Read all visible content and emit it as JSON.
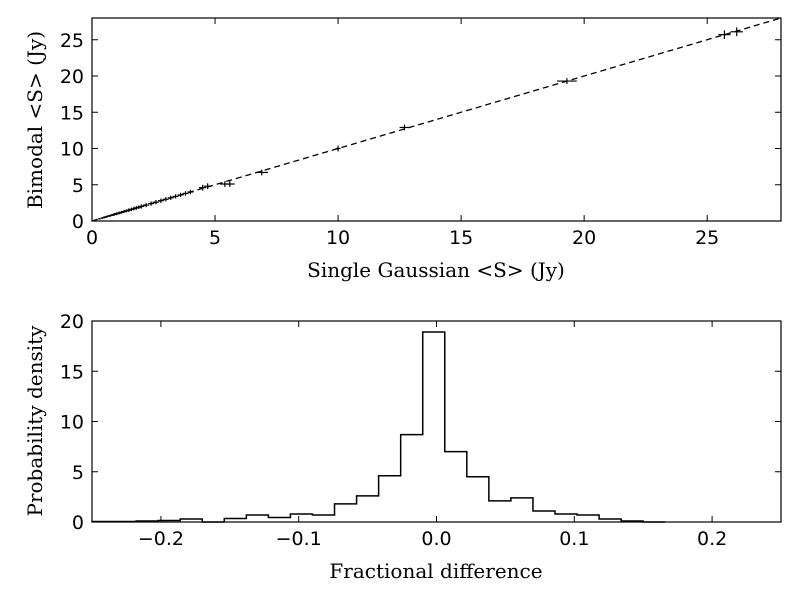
{
  "chart_data": [
    {
      "type": "scatter",
      "xlabel": "Single Gaussian <S> (Jy)",
      "ylabel": "Bimodal <S> (Jy)",
      "xlim": [
        0,
        28
      ],
      "ylim": [
        0,
        28
      ],
      "xticks": [
        "0",
        "5",
        "10",
        "15",
        "20",
        "25"
      ],
      "yticks": [
        "0",
        "5",
        "10",
        "15",
        "20",
        "25"
      ],
      "reference_line": {
        "style": "dashed",
        "x": [
          0,
          28
        ],
        "y": [
          0,
          28
        ]
      },
      "points": [
        {
          "x": 0.3,
          "y": 0.3,
          "xerr": 0.05,
          "yerr": 0.1
        },
        {
          "x": 0.4,
          "y": 0.4,
          "xerr": 0.05,
          "yerr": 0.1
        },
        {
          "x": 0.5,
          "y": 0.5,
          "xerr": 0.06,
          "yerr": 0.15
        },
        {
          "x": 0.6,
          "y": 0.6,
          "xerr": 0.06,
          "yerr": 0.15
        },
        {
          "x": 0.7,
          "y": 0.7,
          "xerr": 0.07,
          "yerr": 0.15
        },
        {
          "x": 0.8,
          "y": 0.8,
          "xerr": 0.07,
          "yerr": 0.15
        },
        {
          "x": 0.9,
          "y": 0.9,
          "xerr": 0.08,
          "yerr": 0.2
        },
        {
          "x": 1.0,
          "y": 1.0,
          "xerr": 0.08,
          "yerr": 0.2
        },
        {
          "x": 1.1,
          "y": 1.1,
          "xerr": 0.08,
          "yerr": 0.2
        },
        {
          "x": 1.2,
          "y": 1.2,
          "xerr": 0.09,
          "yerr": 0.2
        },
        {
          "x": 1.3,
          "y": 1.3,
          "xerr": 0.09,
          "yerr": 0.2
        },
        {
          "x": 1.4,
          "y": 1.4,
          "xerr": 0.1,
          "yerr": 0.2
        },
        {
          "x": 1.5,
          "y": 1.5,
          "xerr": 0.1,
          "yerr": 0.25
        },
        {
          "x": 1.6,
          "y": 1.6,
          "xerr": 0.1,
          "yerr": 0.25
        },
        {
          "x": 1.7,
          "y": 1.7,
          "xerr": 0.1,
          "yerr": 0.25
        },
        {
          "x": 1.8,
          "y": 1.8,
          "xerr": 0.1,
          "yerr": 0.25
        },
        {
          "x": 1.9,
          "y": 1.9,
          "xerr": 0.1,
          "yerr": 0.25
        },
        {
          "x": 2.0,
          "y": 2.0,
          "xerr": 0.12,
          "yerr": 0.3
        },
        {
          "x": 2.2,
          "y": 2.2,
          "xerr": 0.12,
          "yerr": 0.3
        },
        {
          "x": 2.4,
          "y": 2.4,
          "xerr": 0.12,
          "yerr": 0.3
        },
        {
          "x": 2.6,
          "y": 2.6,
          "xerr": 0.12,
          "yerr": 0.3
        },
        {
          "x": 2.8,
          "y": 2.8,
          "xerr": 0.12,
          "yerr": 0.3
        },
        {
          "x": 3.0,
          "y": 3.0,
          "xerr": 0.12,
          "yerr": 0.3
        },
        {
          "x": 3.2,
          "y": 3.2,
          "xerr": 0.12,
          "yerr": 0.3
        },
        {
          "x": 3.4,
          "y": 3.4,
          "xerr": 0.12,
          "yerr": 0.3
        },
        {
          "x": 3.6,
          "y": 3.6,
          "xerr": 0.12,
          "yerr": 0.3
        },
        {
          "x": 3.8,
          "y": 3.8,
          "xerr": 0.12,
          "yerr": 0.3
        },
        {
          "x": 4.0,
          "y": 4.0,
          "xerr": 0.12,
          "yerr": 0.3
        },
        {
          "x": 4.5,
          "y": 4.6,
          "xerr": 0.15,
          "yerr": 0.4
        },
        {
          "x": 4.7,
          "y": 4.8,
          "xerr": 0.15,
          "yerr": 0.4
        },
        {
          "x": 5.4,
          "y": 5.1,
          "xerr": 0.2,
          "yerr": 0.4
        },
        {
          "x": 5.6,
          "y": 5.1,
          "xerr": 0.2,
          "yerr": 0.4
        },
        {
          "x": 6.9,
          "y": 6.7,
          "xerr": 0.25,
          "yerr": 0.4
        },
        {
          "x": 10.0,
          "y": 10.0,
          "xerr": 0.1,
          "yerr": 0.4
        },
        {
          "x": 12.7,
          "y": 12.9,
          "xerr": 0.2,
          "yerr": 0.4
        },
        {
          "x": 19.3,
          "y": 19.3,
          "xerr": 0.4,
          "yerr": 0.4
        },
        {
          "x": 25.7,
          "y": 25.7,
          "xerr": 0.25,
          "yerr": 0.6
        },
        {
          "x": 26.2,
          "y": 26.1,
          "xerr": 0.25,
          "yerr": 0.6
        }
      ]
    },
    {
      "type": "histogram",
      "xlabel": "Fractional difference",
      "ylabel": "Probability density",
      "xlim": [
        -0.25,
        0.25
      ],
      "ylim": [
        0,
        20
      ],
      "xticks": [
        "−0.2",
        "−0.1",
        "0.0",
        "0.1",
        "0.2"
      ],
      "yticks": [
        "0",
        "5",
        "10",
        "15",
        "20"
      ],
      "bin_edges": [
        -0.25,
        -0.234,
        -0.218,
        -0.202,
        -0.186,
        -0.17,
        -0.154,
        -0.138,
        -0.122,
        -0.106,
        -0.09,
        -0.074,
        -0.058,
        -0.042,
        -0.026,
        -0.01,
        0.006,
        0.022,
        0.038,
        0.054,
        0.07,
        0.086,
        0.102,
        0.118,
        0.134,
        0.15,
        0.166
      ],
      "values": [
        0.05,
        0.05,
        0.1,
        0.15,
        0.3,
        0.0,
        0.35,
        0.7,
        0.45,
        0.8,
        0.7,
        1.8,
        2.6,
        4.6,
        8.7,
        18.9,
        7.0,
        4.5,
        2.1,
        2.4,
        1.1,
        0.8,
        0.7,
        0.3,
        0.1,
        0.0
      ]
    }
  ]
}
